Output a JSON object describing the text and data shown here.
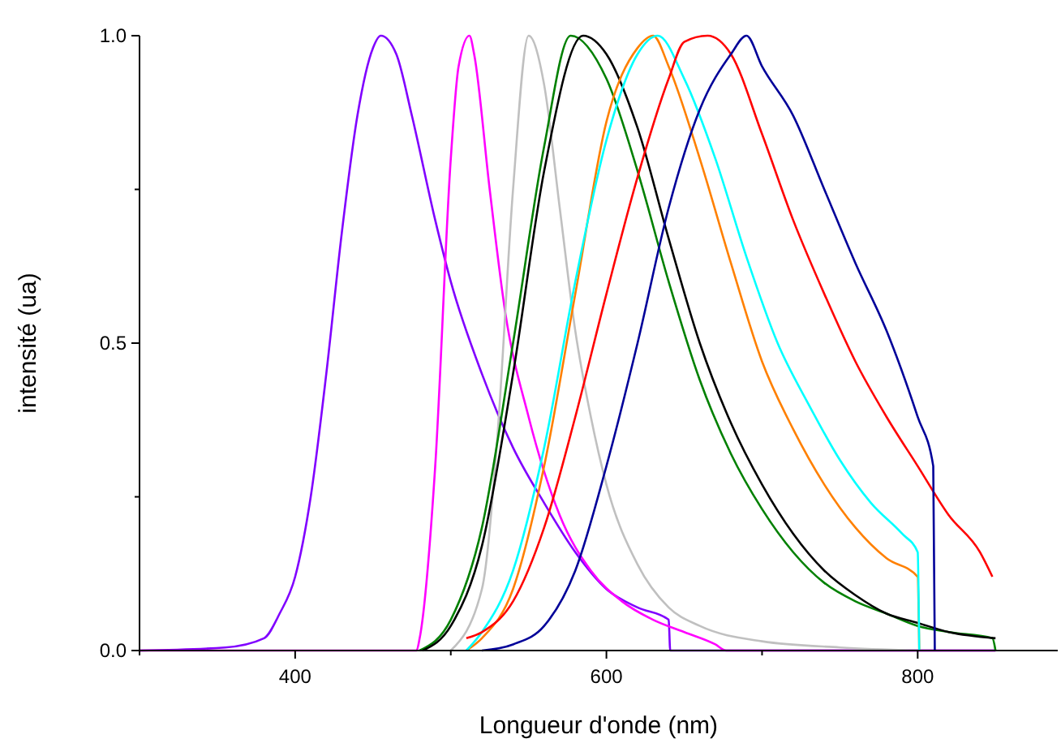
{
  "chart_data": {
    "type": "line",
    "xlabel": "Longueur d'onde (nm)",
    "ylabel": "intensité (ua)",
    "xlim": [
      300,
      890
    ],
    "ylim": [
      0,
      1.0
    ],
    "xticks": [
      {
        "value": 300,
        "label": null
      },
      400,
      {
        "value": 500,
        "label": null
      },
      600,
      {
        "value": 700,
        "label": null
      },
      800
    ],
    "yticks": [
      {
        "value": 0,
        "label": "0.0"
      },
      {
        "value": 0.25,
        "label": null
      },
      0.5,
      {
        "value": 0.75,
        "label": null
      },
      {
        "value": 1,
        "label": "1.0"
      }
    ],
    "marker": "none",
    "line_style": "solid",
    "series": [
      {
        "color": "#8000ff",
        "x": [
          300,
          355,
          380,
          390,
          400,
          410,
          420,
          430,
          440,
          450,
          455,
          465,
          475,
          490,
          500,
          520,
          540,
          560,
          580,
          600,
          620,
          640,
          641,
          850
        ],
        "values": [
          0,
          0.005,
          0.02,
          0.06,
          0.12,
          0.25,
          0.45,
          0.68,
          0.87,
          0.98,
          1.0,
          0.97,
          0.87,
          0.7,
          0.6,
          0.45,
          0.33,
          0.24,
          0.16,
          0.1,
          0.07,
          0.05,
          0,
          0
        ]
      },
      {
        "color": "#ff00ff",
        "x": [
          300,
          478,
          480,
          490,
          500,
          505,
          512,
          515,
          525,
          535,
          550,
          570,
          590,
          610,
          630,
          650,
          670,
          677,
          850
        ],
        "values": [
          0,
          0,
          0.02,
          0.3,
          0.8,
          0.95,
          1.0,
          0.97,
          0.75,
          0.55,
          0.38,
          0.22,
          0.13,
          0.08,
          0.05,
          0.03,
          0.01,
          0,
          0
        ]
      },
      {
        "color": "#c0c0c0",
        "x": [
          500,
          520,
          530,
          540,
          550,
          560,
          570,
          580,
          590,
          600,
          620,
          640,
          660,
          700,
          750,
          800
        ],
        "values": [
          0,
          0.1,
          0.35,
          0.75,
          1.0,
          0.92,
          0.72,
          0.52,
          0.38,
          0.27,
          0.14,
          0.07,
          0.04,
          0.015,
          0.005,
          0
        ]
      },
      {
        "color": "#008000",
        "x": [
          480,
          500,
          520,
          540,
          560,
          577,
          600,
          620,
          640,
          660,
          680,
          700,
          720,
          740,
          760,
          780,
          800,
          820,
          848,
          850
        ],
        "values": [
          0,
          0.05,
          0.2,
          0.5,
          0.82,
          1.0,
          0.93,
          0.78,
          0.6,
          0.44,
          0.32,
          0.23,
          0.16,
          0.11,
          0.08,
          0.06,
          0.04,
          0.03,
          0.02,
          0
        ]
      },
      {
        "color": "#000000",
        "x": [
          482,
          500,
          520,
          540,
          560,
          585,
          600,
          620,
          640,
          660,
          680,
          700,
          720,
          740,
          760,
          780,
          800,
          820,
          850
        ],
        "values": [
          0,
          0.04,
          0.17,
          0.45,
          0.78,
          1.0,
          0.97,
          0.85,
          0.67,
          0.5,
          0.37,
          0.27,
          0.19,
          0.13,
          0.09,
          0.06,
          0.045,
          0.03,
          0.02
        ]
      },
      {
        "color": "#ff8000",
        "x": [
          510,
          520,
          540,
          560,
          580,
          600,
          620,
          630,
          640,
          660,
          680,
          700,
          720,
          740,
          760,
          780,
          800,
          801
        ],
        "values": [
          0,
          0.02,
          0.1,
          0.3,
          0.58,
          0.86,
          0.98,
          1.0,
          0.95,
          0.8,
          0.63,
          0.47,
          0.36,
          0.27,
          0.2,
          0.15,
          0.12,
          0
        ]
      },
      {
        "color": "#00ffff",
        "x": [
          510,
          520,
          540,
          560,
          580,
          600,
          620,
          633,
          650,
          670,
          690,
          710,
          730,
          750,
          770,
          790,
          800,
          801
        ],
        "values": [
          0,
          0.03,
          0.13,
          0.33,
          0.6,
          0.83,
          0.97,
          1.0,
          0.93,
          0.8,
          0.64,
          0.5,
          0.4,
          0.31,
          0.24,
          0.19,
          0.16,
          0
        ]
      },
      {
        "color": "#ff0000",
        "x": [
          510,
          520,
          540,
          560,
          580,
          600,
          620,
          640,
          650,
          665,
          680,
          700,
          720,
          740,
          760,
          780,
          800,
          820,
          840,
          848
        ],
        "values": [
          0.02,
          0.03,
          0.08,
          0.2,
          0.38,
          0.58,
          0.77,
          0.93,
          0.99,
          1.0,
          0.97,
          0.84,
          0.7,
          0.58,
          0.47,
          0.38,
          0.3,
          0.22,
          0.16,
          0.12
        ]
      },
      {
        "color": "#000099",
        "x": [
          520,
          540,
          560,
          580,
          600,
          620,
          640,
          660,
          680,
          690,
          700,
          720,
          740,
          760,
          780,
          800,
          810,
          811
        ],
        "values": [
          0,
          0.01,
          0.04,
          0.13,
          0.3,
          0.5,
          0.72,
          0.88,
          0.97,
          1.0,
          0.95,
          0.87,
          0.75,
          0.63,
          0.52,
          0.38,
          0.3,
          0
        ]
      }
    ]
  }
}
